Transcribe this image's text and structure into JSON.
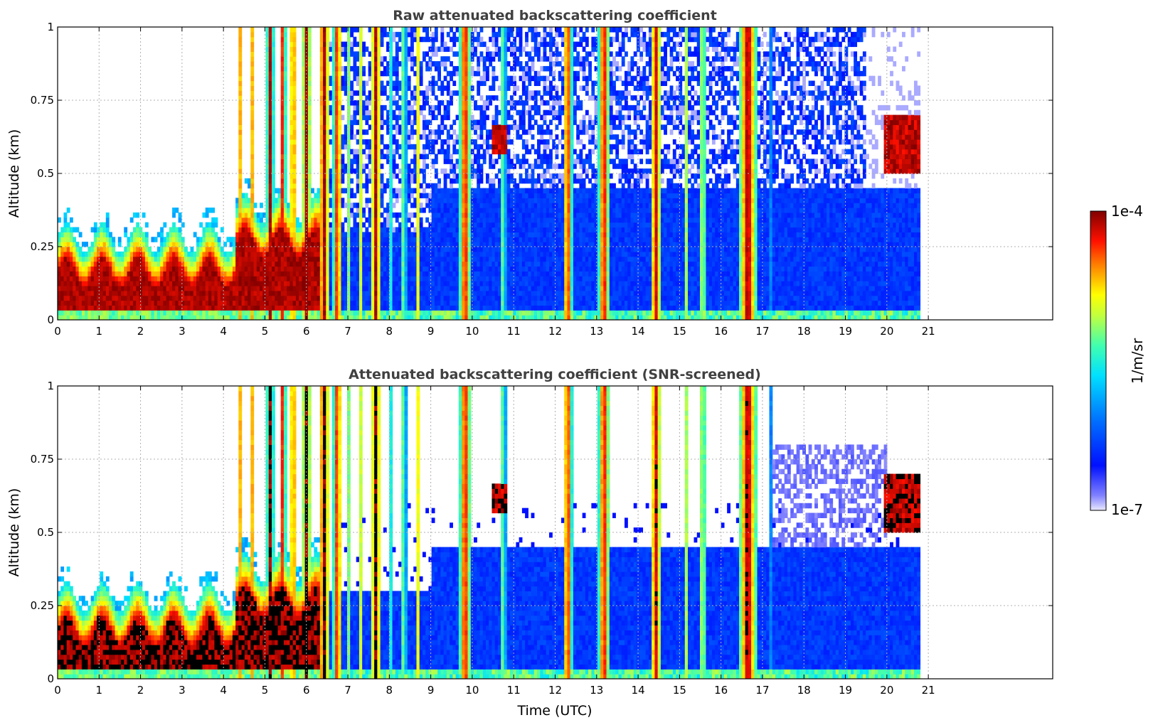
{
  "chart_data": [
    {
      "type": "heatmap",
      "title": "Raw attenuated backscattering coefficient",
      "xlabel": "",
      "ylabel": "Altitude (km)",
      "xlim": [
        0,
        24
      ],
      "ylim": [
        0,
        1
      ],
      "x_ticks": [
        "0",
        "1",
        "2",
        "3",
        "4",
        "5",
        "6",
        "7",
        "8",
        "9",
        "10",
        "11",
        "12",
        "13",
        "14",
        "15",
        "16",
        "17",
        "18",
        "19",
        "20",
        "21"
      ],
      "y_ticks": [
        "0",
        "0.25",
        "0.5",
        "0.75",
        "1"
      ],
      "data_end_time": 20.8,
      "grid": true,
      "colormap": "jet",
      "screened": false
    },
    {
      "type": "heatmap",
      "title": "Attenuated backscattering coefficient (SNR-screened)",
      "xlabel": "Time (UTC)",
      "ylabel": "Altitude (km)",
      "xlim": [
        0,
        24
      ],
      "ylim": [
        0,
        1
      ],
      "x_ticks": [
        "0",
        "1",
        "2",
        "3",
        "4",
        "5",
        "6",
        "7",
        "8",
        "9",
        "10",
        "11",
        "12",
        "13",
        "14",
        "15",
        "16",
        "17",
        "18",
        "19",
        "20",
        "21"
      ],
      "y_ticks": [
        "0",
        "0.25",
        "0.5",
        "0.75",
        "1"
      ],
      "data_end_time": 20.8,
      "grid": true,
      "colormap": "jet",
      "screened": true
    }
  ],
  "colorbar": {
    "label": "1/m/sr",
    "max_label": "1e-4",
    "min_label": "1e-7",
    "scale": "log",
    "range": [
      1e-07,
      0.0001
    ]
  },
  "cloud_bands": [
    {
      "start": 4.35,
      "end": 4.45,
      "intensity": 0.75
    },
    {
      "start": 4.62,
      "end": 4.72,
      "intensity": 0.95
    },
    {
      "start": 5.05,
      "end": 5.2,
      "intensity": 0.95
    },
    {
      "start": 5.35,
      "end": 5.5,
      "intensity": 0.9
    },
    {
      "start": 5.6,
      "end": 5.75,
      "intensity": 0.95
    },
    {
      "start": 5.9,
      "end": 6.1,
      "intensity": 0.95
    },
    {
      "start": 6.3,
      "end": 6.55,
      "intensity": 1.0
    },
    {
      "start": 6.65,
      "end": 6.85,
      "intensity": 0.95
    },
    {
      "start": 6.95,
      "end": 7.05,
      "intensity": 0.7
    },
    {
      "start": 7.25,
      "end": 7.35,
      "intensity": 0.7
    },
    {
      "start": 7.55,
      "end": 7.8,
      "intensity": 0.95
    },
    {
      "start": 8.0,
      "end": 8.05,
      "intensity": 0.6
    },
    {
      "start": 8.3,
      "end": 8.4,
      "intensity": 0.7
    },
    {
      "start": 8.65,
      "end": 8.75,
      "intensity": 0.75
    },
    {
      "start": 9.7,
      "end": 9.95,
      "intensity": 0.95
    },
    {
      "start": 10.7,
      "end": 10.8,
      "intensity": 0.7
    },
    {
      "start": 12.2,
      "end": 12.4,
      "intensity": 0.95
    },
    {
      "start": 13.05,
      "end": 13.3,
      "intensity": 0.95
    },
    {
      "start": 13.65,
      "end": 13.7,
      "intensity": 0.6
    },
    {
      "start": 14.3,
      "end": 14.55,
      "intensity": 0.95
    },
    {
      "start": 15.1,
      "end": 15.2,
      "intensity": 0.7
    },
    {
      "start": 15.5,
      "end": 15.62,
      "intensity": 0.8
    },
    {
      "start": 16.45,
      "end": 16.85,
      "intensity": 1.0
    },
    {
      "start": 17.2,
      "end": 17.25,
      "intensity": 0.6
    }
  ],
  "cloud_patches": [
    {
      "t_start": 10.5,
      "t_end": 10.8,
      "alt_low": 0.57,
      "alt_high": 0.67
    },
    {
      "t_start": 19.95,
      "t_end": 20.8,
      "alt_low": 0.5,
      "alt_high": 0.7
    }
  ]
}
